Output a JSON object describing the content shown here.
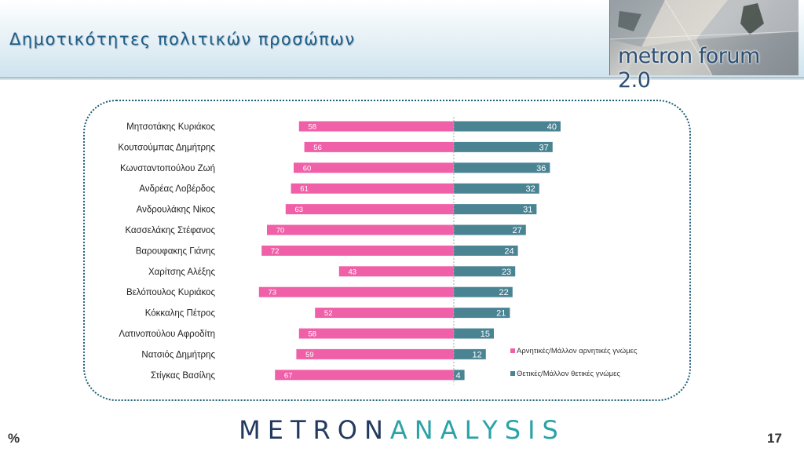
{
  "slide": {
    "title": "Δημοτικότητες πολιτικών προσώπων",
    "page_number": "17",
    "percent_sign": "%"
  },
  "logo": {
    "text": "metron forum 2.0"
  },
  "footer": {
    "brand_left": "METRON",
    "brand_right": "ANALYSIS"
  },
  "colors": {
    "negative": "#f060a8",
    "positive": "#4a8493",
    "title": "#1f5f86"
  },
  "chart_data": {
    "type": "bar",
    "orientation": "horizontal-diverging",
    "categories": [
      "Μητσοτάκης Κυριάκος",
      "Κουτσούμπας Δημήτρης",
      "Κωνσταντοπούλου Ζωή",
      "Ανδρέας Λοβέρδος",
      "Ανδρουλάκης Νίκος",
      "Κασσελάκης Στέφανος",
      "Βαρουφακης Γιάνης",
      "Χαρίτσης Αλέξης",
      "Βελόπουλος Κυριάκος",
      "Κόκκαλης Πέτρος",
      "Λατινοπούλου Αφροδίτη",
      "Νατσιός Δημήτρης",
      "Στίγκας Βασίλης"
    ],
    "series": [
      {
        "name": "Αρνητικές/Μάλλον αρνητικές γνώμες",
        "color": "#f060a8",
        "values": [
          58,
          56,
          60,
          61,
          63,
          70,
          72,
          43,
          73,
          52,
          58,
          59,
          67
        ]
      },
      {
        "name": "Θετικές/Μάλλον θετικές γνώμες",
        "color": "#4a8493",
        "values": [
          40,
          37,
          36,
          32,
          31,
          27,
          24,
          23,
          22,
          21,
          15,
          12,
          4
        ]
      }
    ],
    "legend_position": "right",
    "grid": false
  }
}
